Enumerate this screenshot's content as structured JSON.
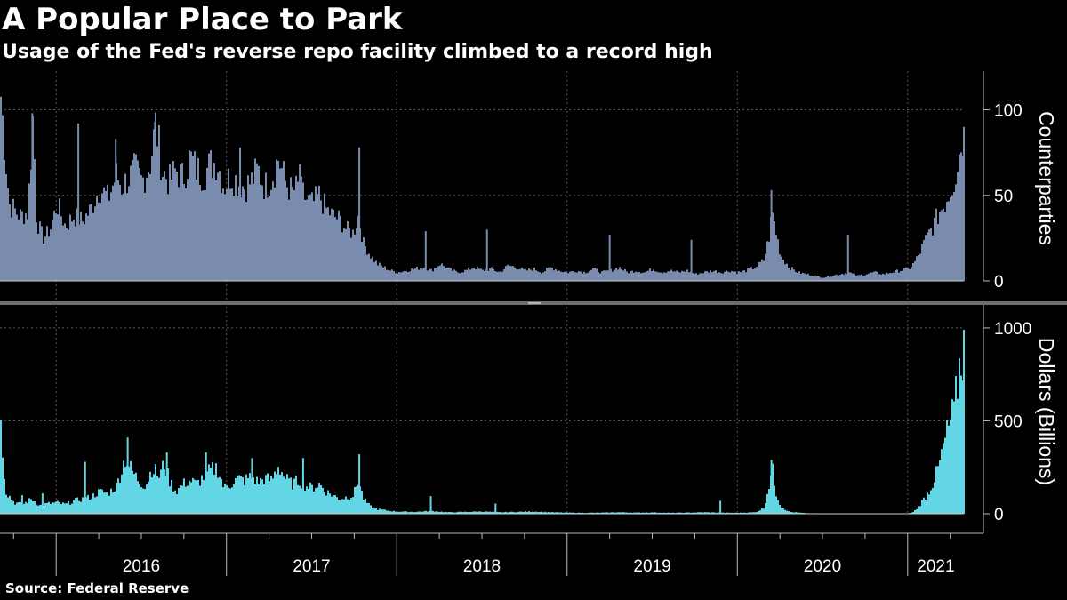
{
  "header": {
    "title": "A Popular Place to Park",
    "subtitle": "Usage of the Fed's reverse repo facility climbed to a record high"
  },
  "footer": {
    "source": "Source: Federal Reserve"
  },
  "colors": {
    "background": "#000000",
    "counterparties": "#7A8CAE",
    "dollars": "#63D6E6",
    "grid": "#5a5a5a",
    "divider": "#6e6e6e"
  },
  "chart_data": {
    "type": "bar",
    "x_domain": [
      2015.67,
      2021.33
    ],
    "x_ticks": [
      {
        "label": "2016",
        "start": 2016,
        "end": 2017
      },
      {
        "label": "2017",
        "start": 2017,
        "end": 2018
      },
      {
        "label": "2018",
        "start": 2018,
        "end": 2019
      },
      {
        "label": "2019",
        "start": 2019,
        "end": 2020
      },
      {
        "label": "2020",
        "start": 2020,
        "end": 2021
      },
      {
        "label": "2021",
        "start": 2021,
        "end": 2021.33
      }
    ],
    "panels": [
      {
        "id": "counterparties",
        "ylabel": "Counterparties",
        "ylim": [
          0,
          120
        ],
        "yticks": [
          {
            "value": 0,
            "label": "0"
          },
          {
            "value": 50,
            "label": "50"
          },
          {
            "value": 100,
            "label": "100"
          }
        ],
        "series_name": "Counterparties",
        "color": "#7A8CAE",
        "points": [
          [
            2015.67,
            108
          ],
          [
            2015.72,
            45
          ],
          [
            2015.78,
            38
          ],
          [
            2015.83,
            40
          ],
          [
            2015.86,
            98
          ],
          [
            2015.88,
            35
          ],
          [
            2015.92,
            25
          ],
          [
            2015.96,
            30
          ],
          [
            2016.0,
            45
          ],
          [
            2016.05,
            32
          ],
          [
            2016.1,
            38
          ],
          [
            2016.15,
            35
          ],
          [
            2016.2,
            42
          ],
          [
            2016.25,
            55
          ],
          [
            2016.3,
            48
          ],
          [
            2016.35,
            62
          ],
          [
            2016.38,
            55
          ],
          [
            2016.42,
            60
          ],
          [
            2016.46,
            65
          ],
          [
            2016.5,
            58
          ],
          [
            2016.55,
            70
          ],
          [
            2016.58,
            92
          ],
          [
            2016.62,
            64
          ],
          [
            2016.66,
            58
          ],
          [
            2016.7,
            65
          ],
          [
            2016.74,
            60
          ],
          [
            2016.78,
            72
          ],
          [
            2016.82,
            65
          ],
          [
            2016.86,
            62
          ],
          [
            2016.9,
            68
          ],
          [
            2016.94,
            70
          ],
          [
            2016.98,
            55
          ],
          [
            2017.02,
            62
          ],
          [
            2017.06,
            58
          ],
          [
            2017.1,
            55
          ],
          [
            2017.14,
            58
          ],
          [
            2017.18,
            65
          ],
          [
            2017.22,
            55
          ],
          [
            2017.26,
            60
          ],
          [
            2017.3,
            72
          ],
          [
            2017.34,
            58
          ],
          [
            2017.38,
            52
          ],
          [
            2017.42,
            55
          ],
          [
            2017.46,
            48
          ],
          [
            2017.5,
            45
          ],
          [
            2017.54,
            50
          ],
          [
            2017.58,
            42
          ],
          [
            2017.62,
            38
          ],
          [
            2017.66,
            36
          ],
          [
            2017.7,
            30
          ],
          [
            2017.74,
            28
          ],
          [
            2017.77,
            38
          ],
          [
            2017.8,
            22
          ],
          [
            2017.84,
            15
          ],
          [
            2017.88,
            10
          ],
          [
            2017.92,
            8
          ],
          [
            2017.96,
            6
          ],
          [
            2018.0,
            5
          ],
          [
            2018.05,
            6
          ],
          [
            2018.1,
            7
          ],
          [
            2018.15,
            8
          ],
          [
            2018.2,
            6
          ],
          [
            2018.25,
            10
          ],
          [
            2018.3,
            7
          ],
          [
            2018.35,
            5
          ],
          [
            2018.4,
            6
          ],
          [
            2018.45,
            8
          ],
          [
            2018.5,
            6
          ],
          [
            2018.55,
            7
          ],
          [
            2018.6,
            5
          ],
          [
            2018.65,
            9
          ],
          [
            2018.7,
            8
          ],
          [
            2018.75,
            6
          ],
          [
            2018.8,
            7
          ],
          [
            2018.85,
            5
          ],
          [
            2018.9,
            8
          ],
          [
            2018.95,
            6
          ],
          [
            2019.0,
            5
          ],
          [
            2019.05,
            6
          ],
          [
            2019.1,
            5
          ],
          [
            2019.15,
            7
          ],
          [
            2019.2,
            5
          ],
          [
            2019.25,
            6
          ],
          [
            2019.3,
            8
          ],
          [
            2019.35,
            5
          ],
          [
            2019.4,
            6
          ],
          [
            2019.45,
            5
          ],
          [
            2019.5,
            7
          ],
          [
            2019.55,
            5
          ],
          [
            2019.6,
            6
          ],
          [
            2019.65,
            5
          ],
          [
            2019.7,
            6
          ],
          [
            2019.75,
            4
          ],
          [
            2019.8,
            5
          ],
          [
            2019.85,
            6
          ],
          [
            2019.9,
            5
          ],
          [
            2019.95,
            6
          ],
          [
            2020.0,
            5
          ],
          [
            2020.05,
            6
          ],
          [
            2020.1,
            8
          ],
          [
            2020.15,
            12
          ],
          [
            2020.18,
            25
          ],
          [
            2020.2,
            40
          ],
          [
            2020.22,
            30
          ],
          [
            2020.25,
            15
          ],
          [
            2020.3,
            8
          ],
          [
            2020.35,
            5
          ],
          [
            2020.4,
            4
          ],
          [
            2020.45,
            3
          ],
          [
            2020.5,
            2
          ],
          [
            2020.55,
            3
          ],
          [
            2020.6,
            4
          ],
          [
            2020.65,
            5
          ],
          [
            2020.7,
            3
          ],
          [
            2020.75,
            4
          ],
          [
            2020.8,
            5
          ],
          [
            2020.85,
            4
          ],
          [
            2020.9,
            5
          ],
          [
            2020.95,
            6
          ],
          [
            2021.0,
            7
          ],
          [
            2021.03,
            10
          ],
          [
            2021.06,
            15
          ],
          [
            2021.09,
            22
          ],
          [
            2021.12,
            28
          ],
          [
            2021.15,
            33
          ],
          [
            2021.18,
            40
          ],
          [
            2021.21,
            45
          ],
          [
            2021.24,
            52
          ],
          [
            2021.27,
            60
          ],
          [
            2021.3,
            75
          ],
          [
            2021.33,
            90
          ]
        ],
        "spikes": [
          [
            2015.86,
            98
          ],
          [
            2016.13,
            92
          ],
          [
            2016.35,
            83
          ],
          [
            2016.58,
            93
          ],
          [
            2017.08,
            78
          ],
          [
            2017.43,
            68
          ],
          [
            2017.78,
            78
          ],
          [
            2018.17,
            29
          ],
          [
            2018.53,
            30
          ],
          [
            2019.25,
            27
          ],
          [
            2019.73,
            24
          ],
          [
            2020.2,
            53
          ],
          [
            2020.65,
            27
          ],
          [
            2021.33,
            90
          ]
        ]
      },
      {
        "id": "dollars",
        "ylabel": "Dollars (Billions)",
        "ylim": [
          0,
          1100
        ],
        "yticks": [
          {
            "value": 0,
            "label": "0"
          },
          {
            "value": 500,
            "label": "500"
          },
          {
            "value": 1000,
            "label": "1000"
          }
        ],
        "series_name": "Dollars (Billions)",
        "color": "#63D6E6",
        "points": [
          [
            2015.67,
            470
          ],
          [
            2015.7,
            120
          ],
          [
            2015.75,
            60
          ],
          [
            2015.8,
            50
          ],
          [
            2015.85,
            80
          ],
          [
            2015.9,
            45
          ],
          [
            2015.95,
            55
          ],
          [
            2016.0,
            60
          ],
          [
            2016.05,
            50
          ],
          [
            2016.1,
            70
          ],
          [
            2016.15,
            80
          ],
          [
            2016.2,
            90
          ],
          [
            2016.25,
            120
          ],
          [
            2016.3,
            110
          ],
          [
            2016.35,
            150
          ],
          [
            2016.4,
            300
          ],
          [
            2016.44,
            230
          ],
          [
            2016.48,
            180
          ],
          [
            2016.52,
            150
          ],
          [
            2016.56,
            250
          ],
          [
            2016.6,
            200
          ],
          [
            2016.63,
            270
          ],
          [
            2016.66,
            180
          ],
          [
            2016.7,
            120
          ],
          [
            2016.74,
            160
          ],
          [
            2016.78,
            180
          ],
          [
            2016.82,
            160
          ],
          [
            2016.86,
            200
          ],
          [
            2016.9,
            230
          ],
          [
            2016.94,
            250
          ],
          [
            2016.98,
            140
          ],
          [
            2017.02,
            160
          ],
          [
            2017.06,
            190
          ],
          [
            2017.1,
            180
          ],
          [
            2017.14,
            200
          ],
          [
            2017.18,
            170
          ],
          [
            2017.22,
            190
          ],
          [
            2017.26,
            180
          ],
          [
            2017.3,
            260
          ],
          [
            2017.34,
            190
          ],
          [
            2017.38,
            160
          ],
          [
            2017.42,
            180
          ],
          [
            2017.46,
            150
          ],
          [
            2017.5,
            140
          ],
          [
            2017.54,
            160
          ],
          [
            2017.58,
            120
          ],
          [
            2017.62,
            100
          ],
          [
            2017.66,
            80
          ],
          [
            2017.7,
            90
          ],
          [
            2017.74,
            100
          ],
          [
            2017.77,
            180
          ],
          [
            2017.8,
            80
          ],
          [
            2017.84,
            40
          ],
          [
            2017.88,
            25
          ],
          [
            2017.92,
            20
          ],
          [
            2017.96,
            15
          ],
          [
            2018.0,
            12
          ],
          [
            2018.1,
            10
          ],
          [
            2018.2,
            15
          ],
          [
            2018.3,
            8
          ],
          [
            2018.4,
            10
          ],
          [
            2018.5,
            12
          ],
          [
            2018.6,
            8
          ],
          [
            2018.7,
            10
          ],
          [
            2018.8,
            12
          ],
          [
            2018.9,
            8
          ],
          [
            2019.0,
            6
          ],
          [
            2019.1,
            5
          ],
          [
            2019.2,
            6
          ],
          [
            2019.3,
            8
          ],
          [
            2019.4,
            6
          ],
          [
            2019.5,
            7
          ],
          [
            2019.6,
            5
          ],
          [
            2019.7,
            6
          ],
          [
            2019.8,
            8
          ],
          [
            2019.9,
            6
          ],
          [
            2020.0,
            5
          ],
          [
            2020.1,
            8
          ],
          [
            2020.15,
            30
          ],
          [
            2020.18,
            150
          ],
          [
            2020.2,
            240
          ],
          [
            2020.22,
            120
          ],
          [
            2020.25,
            40
          ],
          [
            2020.3,
            10
          ],
          [
            2020.4,
            3
          ],
          [
            2020.5,
            1
          ],
          [
            2020.6,
            1
          ],
          [
            2020.7,
            1
          ],
          [
            2020.8,
            1
          ],
          [
            2020.9,
            1
          ],
          [
            2021.0,
            2
          ],
          [
            2021.03,
            10
          ],
          [
            2021.06,
            40
          ],
          [
            2021.09,
            80
          ],
          [
            2021.12,
            120
          ],
          [
            2021.15,
            180
          ],
          [
            2021.18,
            260
          ],
          [
            2021.21,
            380
          ],
          [
            2021.24,
            480
          ],
          [
            2021.27,
            560
          ],
          [
            2021.3,
            800
          ],
          [
            2021.32,
            850
          ],
          [
            2021.33,
            990
          ]
        ],
        "spikes": [
          [
            2015.67,
            470
          ],
          [
            2015.8,
            100
          ],
          [
            2015.92,
            110
          ],
          [
            2016.17,
            280
          ],
          [
            2016.42,
            410
          ],
          [
            2016.65,
            330
          ],
          [
            2016.88,
            330
          ],
          [
            2017.15,
            300
          ],
          [
            2017.45,
            300
          ],
          [
            2017.78,
            320
          ],
          [
            2018.2,
            95
          ],
          [
            2018.58,
            55
          ],
          [
            2019.9,
            70
          ],
          [
            2020.2,
            290
          ],
          [
            2021.33,
            990
          ]
        ]
      }
    ]
  }
}
